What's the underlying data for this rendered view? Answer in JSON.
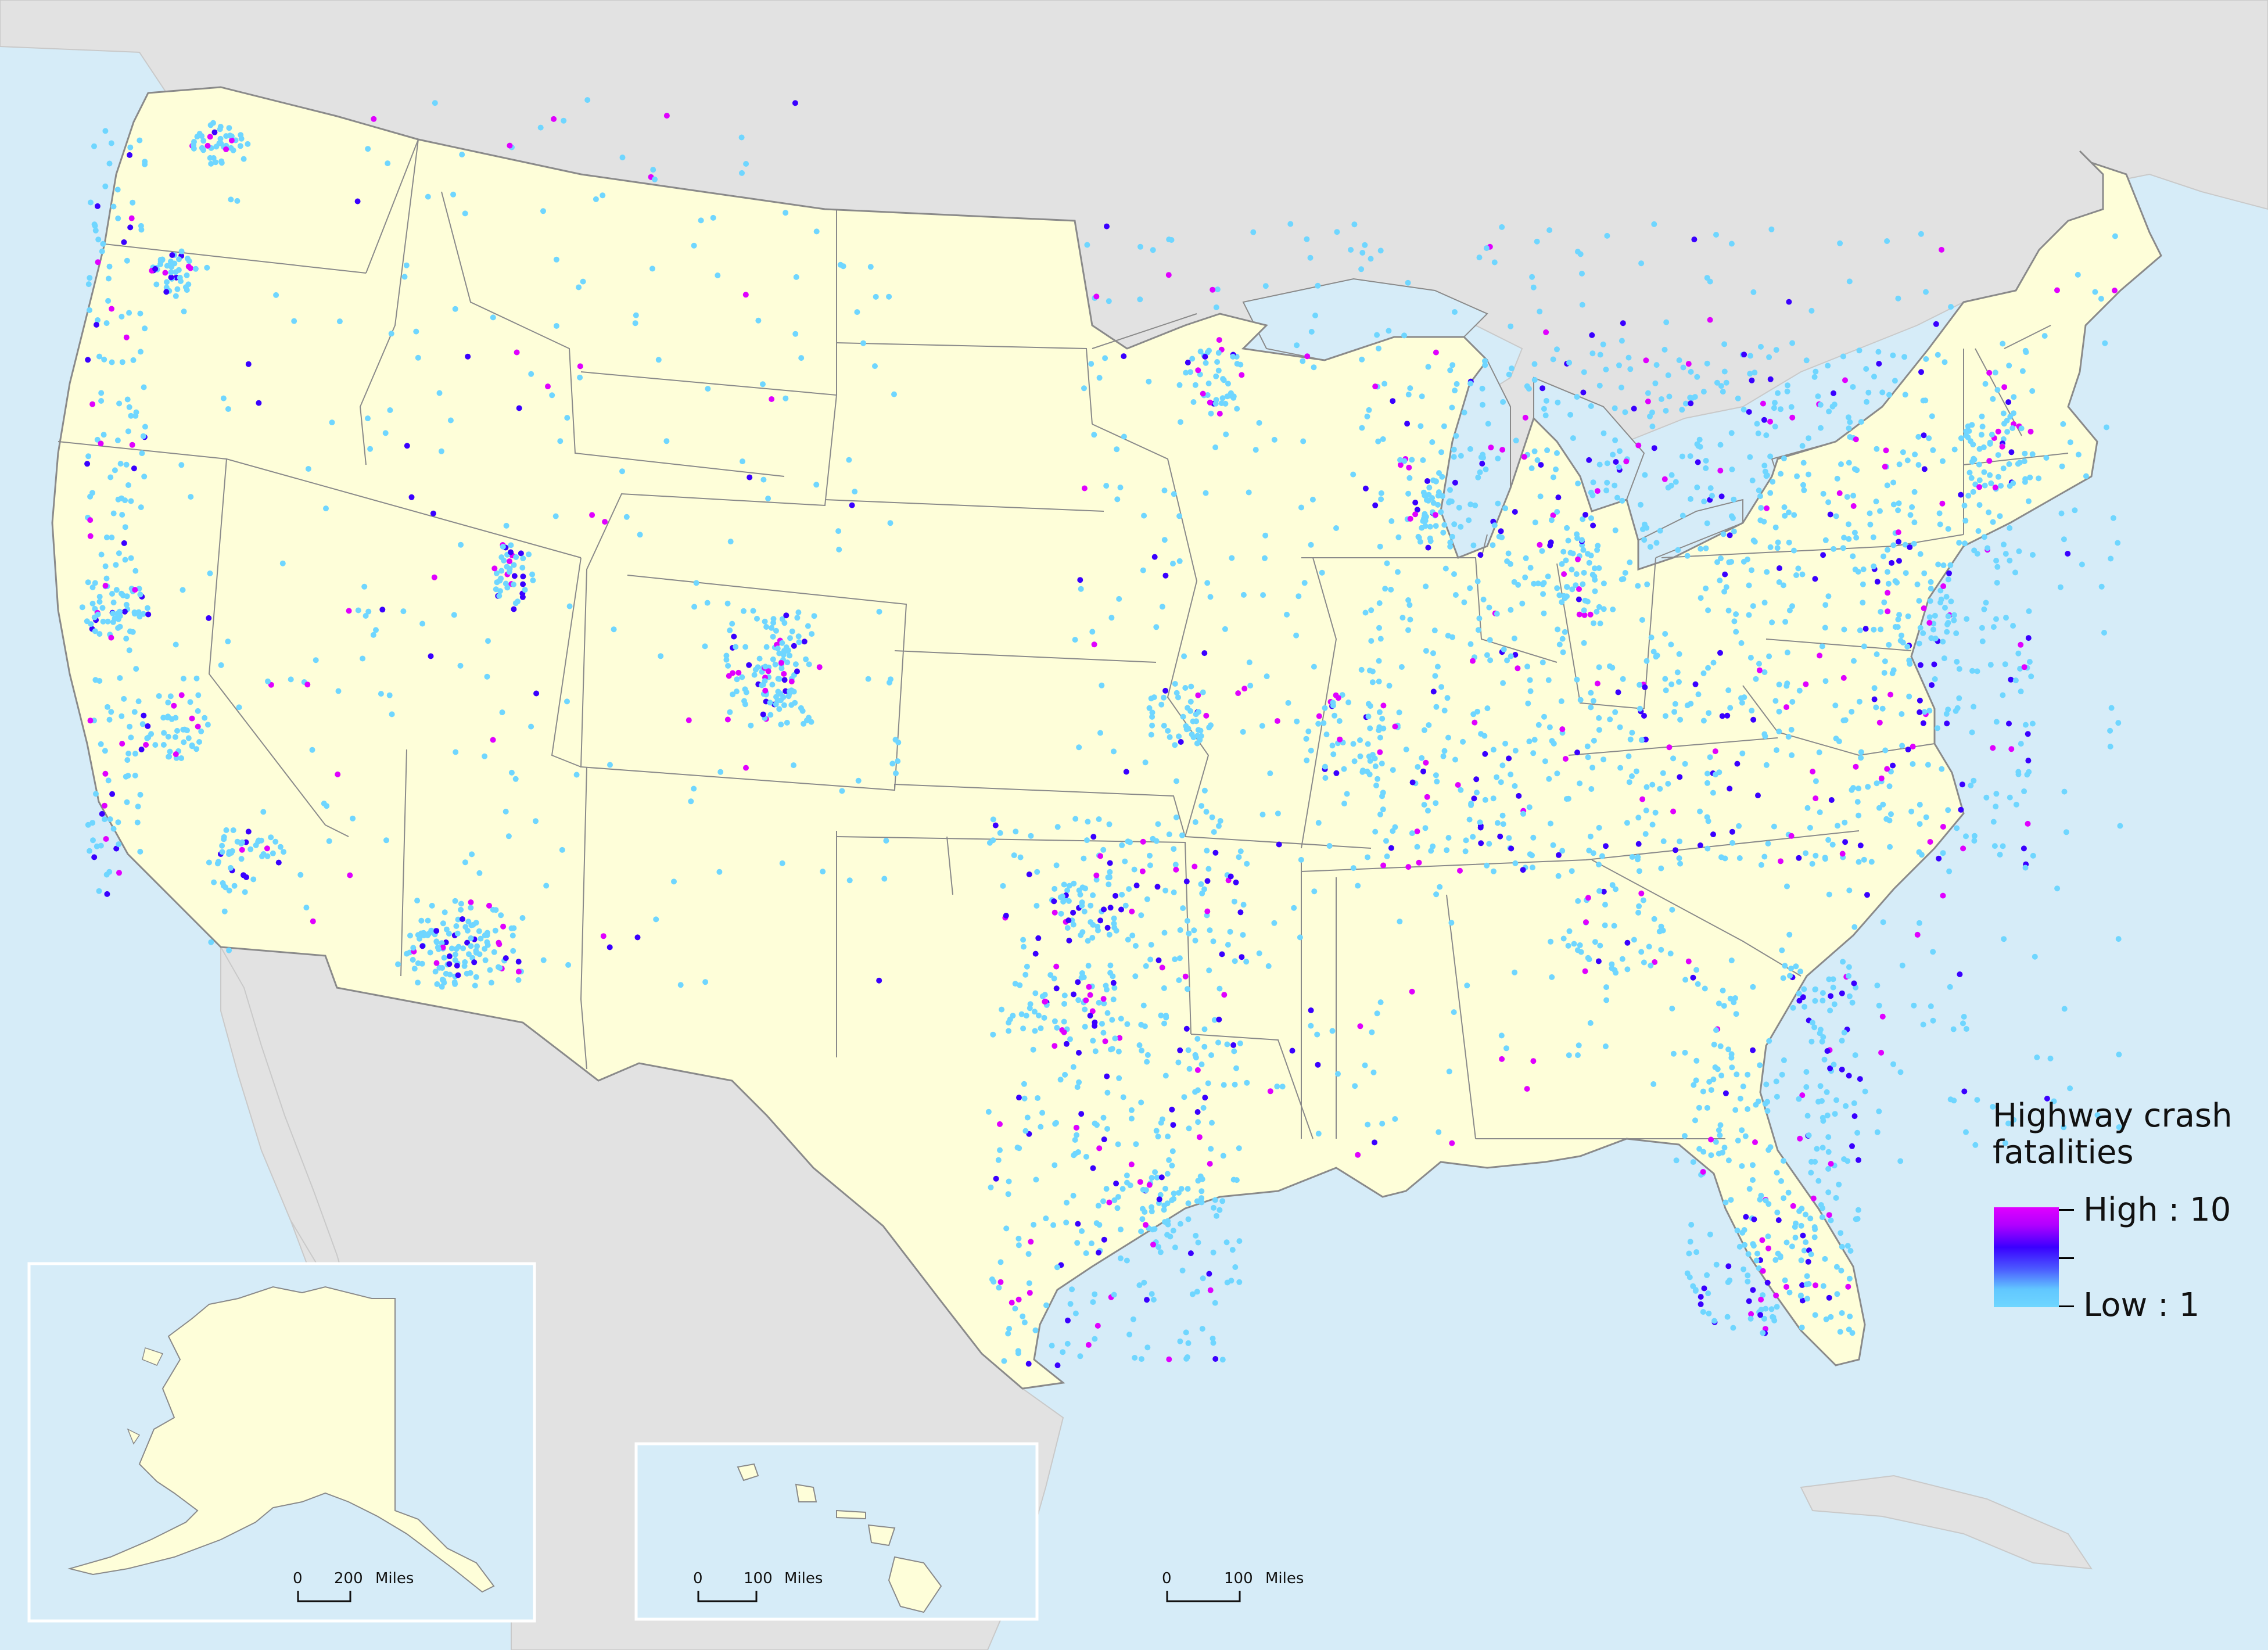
{
  "legend": {
    "title_line1": "Highway crash",
    "title_line2": "fatalities",
    "high_label": "High : 10",
    "low_label": "Low : 1",
    "color_high": "#e000ff",
    "color_mid": "#3a00ff",
    "color_low": "#6fd6ff"
  },
  "scale_bars": {
    "alaska": {
      "zero": "0",
      "distance": "200",
      "unit": "Miles"
    },
    "hawaii": {
      "zero": "0",
      "distance": "100",
      "unit": "Miles"
    },
    "conus": {
      "zero": "0",
      "distance": "100",
      "unit": "Miles"
    }
  },
  "colors": {
    "ocean": "#d6ecf8",
    "land_us": "#fefed9",
    "land_other": "#e2e2e2",
    "border": "#8a8a8a",
    "dot_low": "#6fd6ff",
    "dot_mid": "#3a00ff",
    "dot_high": "#e000ff"
  }
}
